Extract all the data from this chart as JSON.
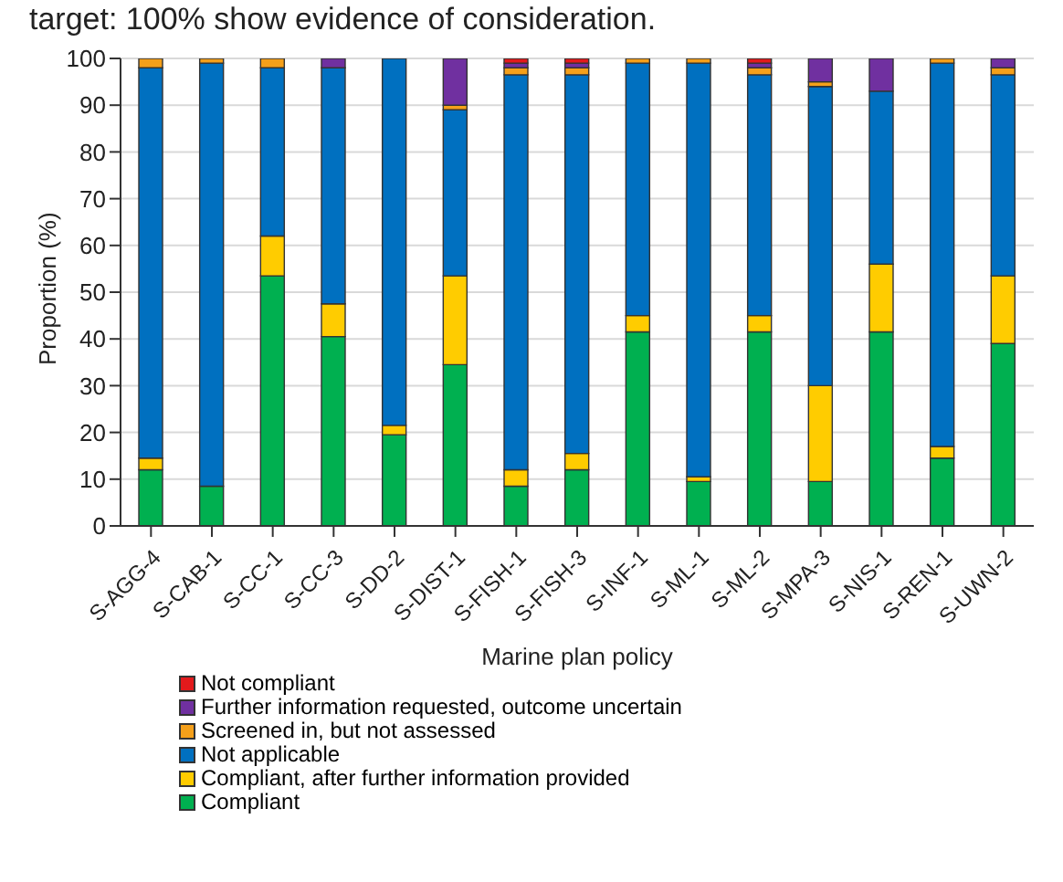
{
  "chart_data": {
    "type": "bar",
    "stacked": true,
    "title": "target: 100% show evidence of consideration.",
    "xlabel": "Marine plan policy",
    "ylabel": "Proportion (%)",
    "categories": [
      "S-AGG-4",
      "S-CAB-1",
      "S-CC-1",
      "S-CC-3",
      "S-DD-2",
      "S-DIST-1",
      "S-FISH-1",
      "S-FISH-3",
      "S-INF-1",
      "S-ML-1",
      "S-ML-2",
      "S-MPA-3",
      "S-NIS-1",
      "S-REN-1",
      "S-UWN-2"
    ],
    "series": [
      {
        "name": "Compliant",
        "color": "#00b050",
        "values": [
          12,
          8.5,
          53.5,
          40.5,
          19.5,
          34.5,
          8.5,
          12,
          41.5,
          9.5,
          41.5,
          9.5,
          41.5,
          14.5,
          39
        ]
      },
      {
        "name": "Compliant, after further information provided",
        "color": "#ffcc00",
        "values": [
          2.5,
          0,
          8.5,
          7,
          2,
          19,
          3.5,
          3.5,
          3.5,
          1,
          3.5,
          20.5,
          14.5,
          2.5,
          14.5
        ]
      },
      {
        "name": "Not applicable",
        "color": "#0070c0",
        "values": [
          83.5,
          90.5,
          36,
          50.5,
          78.5,
          35.5,
          84.5,
          81,
          54,
          88.5,
          51.5,
          64,
          37,
          82,
          43
        ]
      },
      {
        "name": "Screened in, but not assessed",
        "color": "#f5a01a",
        "values": [
          2,
          1,
          2,
          0,
          0,
          1,
          1.5,
          1.5,
          1,
          1,
          1.5,
          1,
          0,
          1,
          1.5
        ]
      },
      {
        "name": "Further information requested, outcome uncertain",
        "color": "#7030a0",
        "values": [
          0,
          0,
          0,
          2,
          0,
          10,
          1,
          1,
          0,
          0,
          1,
          5,
          7,
          0,
          2
        ]
      },
      {
        "name": "Not compliant",
        "color": "#e31a1c",
        "values": [
          0,
          0,
          0,
          0,
          0,
          0,
          1,
          1,
          0,
          0,
          1,
          0,
          0,
          0,
          0
        ]
      }
    ],
    "ylim": [
      0,
      100
    ],
    "yticks": [
      0,
      10,
      20,
      30,
      40,
      50,
      60,
      70,
      80,
      90,
      100
    ],
    "grid": "y",
    "legend": "bottom"
  }
}
